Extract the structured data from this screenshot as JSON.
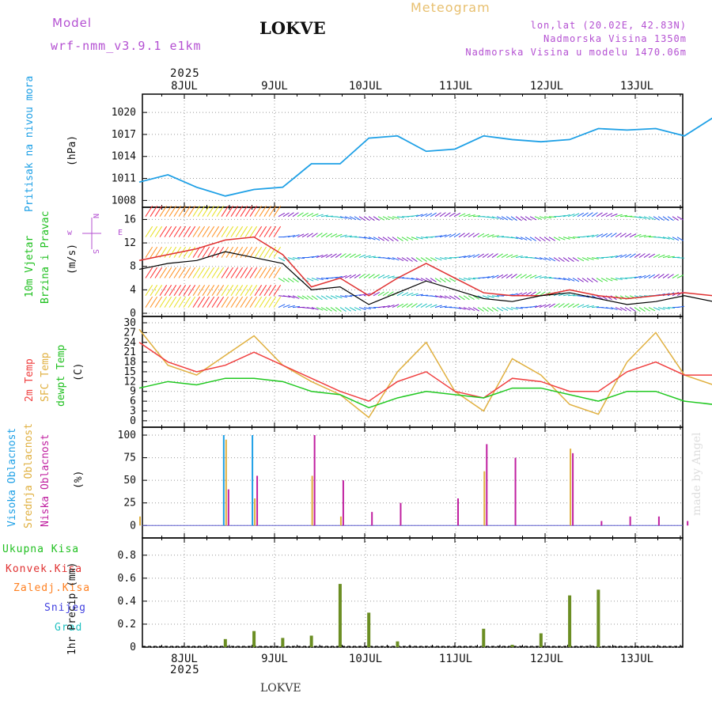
{
  "header": {
    "title": "LOKVE",
    "chart_name": "Meteogram",
    "model_label": "Model",
    "model_name": "wrf-nmm_v3.9.1 e1km",
    "coords": "lon,lat (20.02E, 42.83N)",
    "elevation": "Nadmorska Visina 1350m",
    "model_elevation": "Nadmorska Visina u modelu 1470.06m",
    "footer_title": "LOKVE",
    "credit": "made by Angel",
    "year_top": "2025",
    "year_bottom": "2025"
  },
  "colors": {
    "pressure": "#1ea0e6",
    "temp2m": "#f04040",
    "sfc": "#e0b040",
    "dewpt": "#20c820",
    "high_cloud": "#1ea0e6",
    "mid_cloud": "#e0b040",
    "low_cloud": "#c020a0",
    "total_precip": "#20c020",
    "conv_precip": "#e03030",
    "frz_precip": "#ff8020",
    "snow": "#4040e0",
    "hail": "#20c0c0",
    "purple": "#b450d2"
  },
  "chart_data": {
    "type": "meteogram",
    "days": [
      "8JUL",
      "9JUL",
      "10JUL",
      "11JUL",
      "12JUL",
      "13JUL"
    ],
    "time_hours": [
      -12,
      6,
      12,
      18,
      24,
      30,
      36,
      42,
      48,
      54,
      60,
      66,
      72,
      78,
      84,
      90,
      96,
      102,
      108,
      114,
      120,
      126,
      132,
      138,
      144,
      150,
      156
    ],
    "panels": {
      "pressure": {
        "ylabel": "Pritisak na nivou mora",
        "unit": "(hPa)",
        "yticks": [
          1008,
          1011,
          1014,
          1017,
          1020
        ],
        "ylim": [
          1007.5,
          1021.2
        ],
        "series": [
          {
            "name": "Pritisak na nivou mora",
            "values": [
              1010.5,
              1011.5,
              1009.8,
              1008.6,
              1009.5,
              1009.8,
              1013.0,
              1013.0,
              1016.5,
              1016.8,
              1014.7,
              1015.0,
              1016.8,
              1016.3,
              1016.0,
              1016.3,
              1017.8,
              1017.6,
              1017.8,
              1016.8,
              1019.3,
              1019.9,
              1019.0
            ]
          }
        ]
      },
      "wind": {
        "ylabel": "10m Vjetar Brzina i Pravac",
        "unit": "(m/s)",
        "legend": [
          "N",
          "w",
          "E",
          "S"
        ],
        "yticks": [
          0,
          4,
          8,
          12,
          16
        ],
        "ylim": [
          0,
          17
        ],
        "series": [
          {
            "name": "speed",
            "values": [
              7.5,
              8.5,
              9.0,
              10.5,
              9.5,
              8.5,
              4.0,
              4.5,
              1.5,
              3.5,
              5.5,
              4.0,
              2.5,
              2.0,
              3.0,
              3.5,
              2.5,
              1.5,
              2.0,
              3.0,
              2.0,
              1.5,
              2.5
            ]
          },
          {
            "name": "gust",
            "values": [
              9.0,
              10.0,
              11.0,
              12.5,
              13.0,
              10.0,
              4.5,
              6.0,
              3.0,
              6.0,
              8.5,
              6.0,
              3.5,
              3.0,
              3.0,
              4.0,
              3.0,
              2.5,
              3.0,
              3.5,
              3.0,
              2.5,
              3.0
            ]
          }
        ]
      },
      "temperature": {
        "ylabel": "2m Temp",
        "ylabel2": "SFC Temp",
        "ylabel3": "dewpt Temp",
        "unit": "(C)",
        "yticks": [
          0,
          3,
          6,
          9,
          12,
          15,
          18,
          21,
          24,
          27,
          30
        ],
        "ylim": [
          -1,
          30
        ],
        "series": [
          {
            "name": "2m Temp",
            "values": [
              24,
              18,
              15,
              17,
              21,
              17,
              13,
              9,
              6,
              12,
              15,
              9,
              7,
              13,
              12,
              9,
              9,
              15,
              18,
              14,
              14,
              19,
              22
            ]
          },
          {
            "name": "SFC Temp",
            "values": [
              28,
              17,
              14,
              20,
              26,
              17,
              12,
              8,
              1,
              15,
              24,
              9,
              3,
              19,
              14,
              5,
              2,
              18,
              27,
              14,
              11,
              25,
              30
            ]
          },
          {
            "name": "dewpt Temp",
            "values": [
              10,
              12,
              11,
              13,
              13,
              12,
              9,
              8,
              4,
              7,
              9,
              8,
              7,
              10,
              10,
              8,
              6,
              9,
              9,
              6,
              5,
              10,
              8
            ]
          }
        ]
      },
      "clouds": {
        "ylabel": "Visoka Oblacnost",
        "ylabel2": "Srednja Oblacnost",
        "ylabel3": "Niska Oblacnost",
        "unit": "(%)",
        "yticks": [
          0,
          25,
          50,
          75,
          100
        ],
        "ylim": [
          -5,
          100
        ],
        "series": [
          {
            "name": "Visoka Oblacnost",
            "values": [
              0,
              0,
              0,
              100,
              100,
              0,
              0,
              0,
              0,
              0,
              0,
              0,
              0,
              0,
              0,
              0,
              0,
              0,
              0,
              0,
              0,
              0,
              0
            ]
          },
          {
            "name": "Srednja Oblacnost",
            "values": [
              10,
              0,
              0,
              95,
              30,
              0,
              55,
              10,
              0,
              0,
              0,
              0,
              60,
              0,
              0,
              85,
              0,
              0,
              0,
              0,
              0,
              0,
              0
            ]
          },
          {
            "name": "Niska Oblacnost",
            "values": [
              0,
              0,
              0,
              40,
              55,
              0,
              100,
              50,
              15,
              25,
              0,
              30,
              90,
              75,
              0,
              80,
              5,
              10,
              10,
              5,
              5,
              3,
              3
            ]
          }
        ]
      },
      "precip": {
        "ylabel": "1hr Precip",
        "unit": "(mm)",
        "legend": [
          "Ukupna Kisa",
          "Konvek.Kisa",
          "Zaledj.Kisa",
          "Snijeg",
          "Grad"
        ],
        "yticks": [
          0,
          0.2,
          0.4,
          0.6,
          0.8
        ],
        "ylim": [
          0,
          0.95
        ],
        "series": [
          {
            "name": "Ukupna Kisa",
            "values": [
              0,
              0,
              0,
              0.07,
              0.14,
              0.08,
              0.1,
              0.55,
              0.3,
              0.05,
              0,
              0,
              0.16,
              0.02,
              0.12,
              0.45,
              0.5,
              0,
              0,
              0,
              0,
              0,
              0
            ]
          }
        ]
      }
    }
  }
}
